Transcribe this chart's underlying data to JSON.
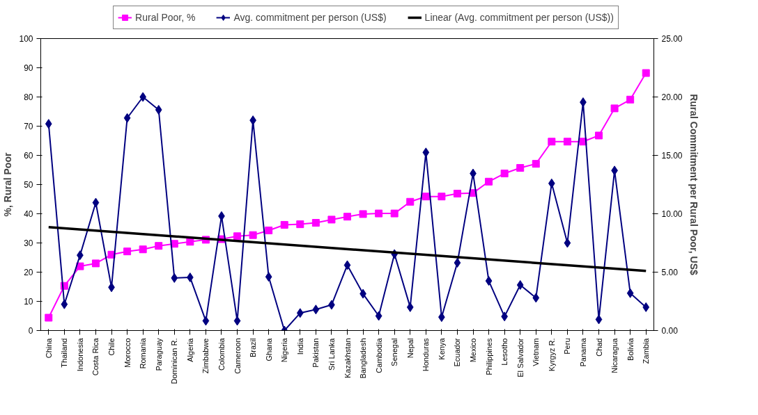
{
  "chart_data": {
    "type": "line",
    "ylabel": "%, Rural Poor",
    "y2label": "Rural Commitment per Rural Poor, US$",
    "categories": [
      "China",
      "Thailand",
      "Indonesia",
      "Costa Rica",
      "Chile",
      "Morocco",
      "Romania",
      "Paraguay",
      "Dominican R.",
      "Algeria",
      "Zimbabwe",
      "Colombia",
      "Cameroon",
      "Brazil",
      "Ghana",
      "Nigeria",
      "India",
      "Pakistan",
      "Sri Lanka",
      "Kazakhstan",
      "Bangladesh",
      "Cambodia",
      "Senegal",
      "Nepal",
      "Honduras",
      "Kenya",
      "Ecuador",
      "Mexico",
      "Philippines",
      "Lesotho",
      "El Salvador",
      "Vietnam",
      "Kyrgyz R.",
      "Peru",
      "Panama",
      "Chad",
      "Nicaragua",
      "Bolivia",
      "Zambia"
    ],
    "series": [
      {
        "name": "Rural Poor, %",
        "color": "#ff00ff",
        "marker": "square",
        "values": [
          4.4,
          15.3,
          22,
          23,
          26,
          27.1,
          27.8,
          29,
          29.7,
          30.4,
          31.1,
          31.3,
          32.3,
          32.7,
          34.3,
          36.2,
          36.4,
          36.9,
          38,
          39,
          39.9,
          40.1,
          40.1,
          44.1,
          45.9,
          45.9,
          46.9,
          47.1,
          51,
          53.8,
          55.7,
          57.1,
          64.7,
          64.7,
          64.7,
          66.8,
          76.1,
          79.1,
          88.2
        ]
      },
      {
        "name": "Avg. commitment per person (US$)",
        "color": "#000080",
        "marker": "diamond",
        "axis": "y2",
        "values": [
          17.7,
          2.25,
          6.45,
          10.95,
          3.7,
          18.2,
          20,
          18.9,
          4.5,
          4.55,
          0.83,
          9.8,
          0.83,
          18,
          4.6,
          0,
          1.5,
          1.8,
          2.2,
          5.6,
          3.15,
          1.25,
          6.55,
          2,
          15.25,
          1.15,
          5.8,
          13.45,
          4.25,
          1.2,
          3.9,
          2.8,
          12.6,
          7.5,
          19.55,
          0.95,
          13.7,
          3.2,
          2
        ]
      },
      {
        "name": "Linear (Avg. commitment per person (US$))",
        "color": "#000000",
        "marker": "none",
        "axis": "y2",
        "x": [
          "China",
          "Zambia"
        ],
        "values": [
          8.85,
          5.1
        ]
      }
    ],
    "ylim": [
      0,
      100
    ],
    "yticks": [
      0,
      10,
      20,
      30,
      40,
      50,
      60,
      70,
      80,
      90,
      100
    ],
    "y2lim": [
      0,
      25
    ],
    "y2ticks": [
      {
        "value": 0,
        "label": "0.00"
      },
      {
        "value": 5,
        "label": "5.00"
      },
      {
        "value": 10,
        "label": "10.00"
      },
      {
        "value": 15,
        "label": "15.00"
      },
      {
        "value": 20,
        "label": "20.00"
      },
      {
        "value": 25,
        "label": "25.00"
      }
    ],
    "grid": false,
    "legend": "top"
  }
}
